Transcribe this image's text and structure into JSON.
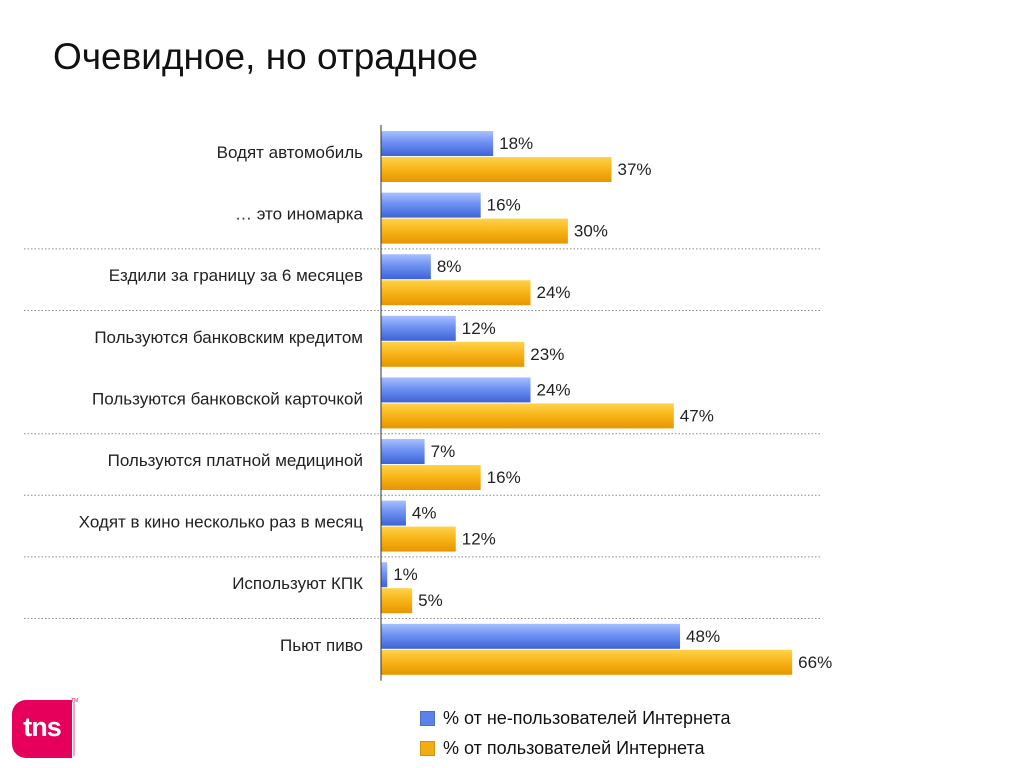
{
  "page": {
    "title": "Очевидное, но отрадное"
  },
  "colors": {
    "non_users": "#5b82e8",
    "users": "#f2ad12",
    "separator": "#8a8a8a",
    "axis": "#333333",
    "brand": "#e6005c"
  },
  "logo": {
    "text": "tns",
    "icon": "tns-logo-icon"
  },
  "legend": {
    "non_users": "% от не-пользователей Интернета",
    "users": "% от пользователей Интернета"
  },
  "chart_data": {
    "type": "bar",
    "orientation": "horizontal",
    "categories": [
      "Водят автомобиль",
      "… это иномарка",
      "Ездили за границу за 6 месяцев",
      "Пользуются банковским кредитом",
      "Пользуются банковской карточкой",
      "Пользуются платной медициной",
      "Ходят в кино несколько раз в месяц",
      "Используют КПК",
      "Пьют пиво"
    ],
    "series": [
      {
        "name": "% от не-пользователей Интернета",
        "values": [
          18,
          16,
          8,
          12,
          24,
          7,
          4,
          1,
          48
        ],
        "labels": [
          "18%",
          "16%",
          "8%",
          "12%",
          "24%",
          "7%",
          "4%",
          "1%",
          "48%"
        ]
      },
      {
        "name": "% от пользователей Интернета",
        "values": [
          37,
          30,
          24,
          23,
          47,
          16,
          12,
          5,
          66
        ],
        "labels": [
          "37%",
          "30%",
          "24%",
          "23%",
          "47%",
          "16%",
          "12%",
          "5%",
          "66%"
        ]
      }
    ],
    "xlim": [
      0,
      70
    ],
    "legend_position": "bottom",
    "grid": false
  }
}
